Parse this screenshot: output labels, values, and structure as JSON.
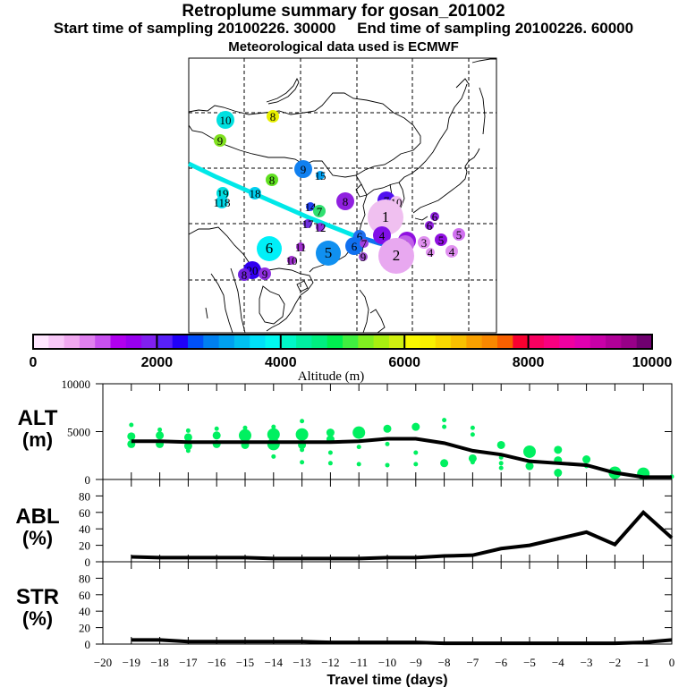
{
  "header": {
    "title": "Retroplume summary for gosan_201002",
    "sampling_line": "Start time of sampling 20100226. 30000     End time of sampling 20100226. 60000",
    "met_line": "Meteorological data used is ECMWF"
  },
  "colorbar": {
    "label": "Altitude (m)",
    "range": [
      0,
      10000
    ],
    "step": 250,
    "tick_labels": [
      "0",
      "2000",
      "4000",
      "6000",
      "8000",
      "10000"
    ],
    "colors": [
      "#ffe6ff",
      "#f8c8f8",
      "#f0a8f0",
      "#e080f0",
      "#c850f0",
      "#b000f0",
      "#9800f0",
      "#8020f0",
      "#5820f8",
      "#2000f8",
      "#0050f8",
      "#0080f0",
      "#00a0f0",
      "#00c0f0",
      "#00e0f8",
      "#00f8f0",
      "#00f8c8",
      "#00f0a0",
      "#00f080",
      "#00f050",
      "#40f040",
      "#80f020",
      "#a8f010",
      "#d0f010",
      "#f8f800",
      "#f8f000",
      "#f8d800",
      "#f8c000",
      "#f8a000",
      "#f88800",
      "#f86000",
      "#f80030",
      "#f80060",
      "#f80080",
      "#f000a0",
      "#e000b0",
      "#c800a8",
      "#b00098",
      "#980088",
      "#700070"
    ]
  },
  "map": {
    "markers": [
      {
        "label": "10",
        "color": "#00e0e0",
        "size": "m"
      },
      {
        "label": "8",
        "color": "#e8f000",
        "size": "s"
      },
      {
        "label": "9",
        "color": "#80e020",
        "size": "s"
      },
      {
        "label": "9",
        "color": "#1080f0",
        "size": "m"
      },
      {
        "label": "15",
        "color": "#00a0f0",
        "size": "xs"
      },
      {
        "label": "8",
        "color": "#60e020",
        "size": "s"
      },
      {
        "label": "19",
        "color": "#00e0e0",
        "size": "s"
      },
      {
        "label": "118",
        "color": "#00d8e8",
        "size": "s"
      },
      {
        "label": "18",
        "color": "#00d0f0",
        "size": "s"
      },
      {
        "label": "14",
        "color": "#2040f0",
        "size": "xs"
      },
      {
        "label": "7",
        "color": "#30e070",
        "size": "s"
      },
      {
        "label": "8",
        "color": "#9020e0",
        "size": "m"
      },
      {
        "label": "17",
        "color": "#7030e0",
        "size": "xs"
      },
      {
        "label": "12",
        "color": "#9030e0",
        "size": "xs"
      },
      {
        "label": "6",
        "color": "#00f0f8",
        "size": "l"
      },
      {
        "label": "11",
        "color": "#a030d0",
        "size": "xs"
      },
      {
        "label": "10",
        "color": "#a030d0",
        "size": "xs"
      },
      {
        "label": "5",
        "color": "#1090f0",
        "size": "l"
      },
      {
        "label": "20",
        "color": "#3000f0",
        "size": "m"
      },
      {
        "label": "8",
        "color": "#7020e0",
        "size": "s"
      },
      {
        "label": "9",
        "color": "#9030e0",
        "size": "s"
      },
      {
        "label": "7",
        "color": "#5010f0",
        "size": "m"
      },
      {
        "label": "10",
        "color": "#f0c0f0",
        "size": "s"
      },
      {
        "label": "1",
        "color": "#f0c0f0",
        "size": "xl"
      },
      {
        "label": "6",
        "color": "#2070f0",
        "size": "s"
      },
      {
        "label": "6",
        "color": "#1070f0",
        "size": "m"
      },
      {
        "label": "7",
        "color": "#a040e0",
        "size": "xs"
      },
      {
        "label": "9",
        "color": "#a050d0",
        "size": "xs"
      },
      {
        "label": "4",
        "color": "#8010e8",
        "size": "m"
      },
      {
        "label": "8",
        "color": "#3020f0",
        "size": "s"
      },
      {
        "label": "3",
        "color": "#9010e0",
        "size": "m"
      },
      {
        "label": "5",
        "color": "#c060e8",
        "size": "m"
      },
      {
        "label": "2",
        "color": "#e8a8f0",
        "size": "xl"
      },
      {
        "label": "3",
        "color": "#e090f0",
        "size": "s"
      },
      {
        "label": "6",
        "color": "#9020e0",
        "size": "xs"
      },
      {
        "label": "6",
        "color": "#9020e0",
        "size": "xs"
      },
      {
        "label": "5",
        "color": "#9010e0",
        "size": "s"
      },
      {
        "label": "5",
        "color": "#d070f0",
        "size": "s"
      },
      {
        "label": "4",
        "color": "#e090f0",
        "size": "xs"
      },
      {
        "label": "4",
        "color": "#e090f0",
        "size": "s"
      }
    ]
  },
  "chart_data": [
    {
      "type": "scatter",
      "name": "ALT",
      "ylabel": "ALT\n(m)",
      "ylabel_line1": "ALT",
      "ylabel_line2": "(m)",
      "ylim": [
        0,
        10000
      ],
      "yticks": [
        0,
        5000,
        10000
      ],
      "ytick_labels": [
        "0",
        "5000",
        "10000"
      ],
      "xlim": [
        -20,
        0
      ],
      "mean_line": {
        "x": [
          -19,
          -18,
          -17,
          -16,
          -15,
          -14,
          -13,
          -12,
          -11,
          -10,
          -9,
          -8,
          -7,
          -6,
          -5,
          -4,
          -3,
          -2,
          -1,
          0
        ],
        "y": [
          4000,
          4000,
          3900,
          3900,
          3900,
          3900,
          3900,
          3900,
          4000,
          4250,
          4250,
          3800,
          3000,
          2600,
          1900,
          1700,
          1500,
          700,
          250,
          250
        ]
      },
      "clusters": [
        {
          "x": -19,
          "points": [
            [
              5700,
              1
            ],
            [
              4500,
              2
            ],
            [
              3700,
              2
            ]
          ]
        },
        {
          "x": -18,
          "points": [
            [
              5200,
              1
            ],
            [
              4600,
              2
            ],
            [
              3700,
              2
            ]
          ]
        },
        {
          "x": -17,
          "points": [
            [
              5100,
              1
            ],
            [
              4400,
              2
            ],
            [
              3500,
              2
            ],
            [
              3000,
              1
            ]
          ]
        },
        {
          "x": -16,
          "points": [
            [
              5300,
              1
            ],
            [
              4600,
              2
            ],
            [
              3700,
              2
            ]
          ]
        },
        {
          "x": -15,
          "points": [
            [
              5400,
              1
            ],
            [
              4600,
              3
            ],
            [
              3600,
              2
            ]
          ]
        },
        {
          "x": -14,
          "points": [
            [
              5500,
              1
            ],
            [
              4700,
              3
            ],
            [
              3700,
              3
            ],
            [
              2400,
              1
            ]
          ]
        },
        {
          "x": -13,
          "points": [
            [
              6100,
              1
            ],
            [
              4700,
              3
            ],
            [
              3600,
              2
            ],
            [
              3100,
              1
            ],
            [
              1800,
              1
            ]
          ]
        },
        {
          "x": -12,
          "points": [
            [
              4900,
              2
            ],
            [
              4200,
              2
            ],
            [
              2800,
              1
            ],
            [
              1700,
              1
            ]
          ]
        },
        {
          "x": -11,
          "points": [
            [
              4900,
              3
            ],
            [
              3400,
              1
            ],
            [
              1600,
              1
            ]
          ]
        },
        {
          "x": -10,
          "points": [
            [
              5300,
              2
            ],
            [
              3700,
              1
            ],
            [
              1500,
              1
            ]
          ]
        },
        {
          "x": -9,
          "points": [
            [
              5500,
              2
            ],
            [
              2800,
              1
            ],
            [
              1600,
              1
            ]
          ]
        },
        {
          "x": -8,
          "points": [
            [
              6200,
              1
            ],
            [
              5500,
              1
            ],
            [
              1700,
              2
            ]
          ]
        },
        {
          "x": -7,
          "points": [
            [
              5400,
              1
            ],
            [
              4700,
              1
            ],
            [
              2200,
              2
            ],
            [
              1800,
              1
            ]
          ]
        },
        {
          "x": -6,
          "points": [
            [
              3600,
              2
            ],
            [
              2300,
              1
            ],
            [
              1700,
              1
            ],
            [
              1200,
              1
            ]
          ]
        },
        {
          "x": -5,
          "points": [
            [
              2900,
              3
            ],
            [
              1400,
              2
            ]
          ]
        },
        {
          "x": -4,
          "points": [
            [
              3100,
              2
            ],
            [
              2000,
              2
            ],
            [
              700,
              2
            ]
          ]
        },
        {
          "x": -3,
          "points": [
            [
              2100,
              2
            ],
            [
              1400,
              1
            ]
          ]
        },
        {
          "x": -2,
          "points": [
            [
              700,
              3
            ]
          ]
        },
        {
          "x": -1,
          "points": [
            [
              600,
              3
            ]
          ]
        },
        {
          "x": 0,
          "points": [
            [
              300,
              1
            ]
          ]
        }
      ],
      "point_color": "#00f060"
    },
    {
      "type": "line",
      "name": "ABL",
      "ylabel_line1": "ABL",
      "ylabel_line2": "(%)",
      "ylim": [
        0,
        100
      ],
      "yticks": [
        0,
        20,
        40,
        60,
        80
      ],
      "ytick_labels": [
        "0",
        "20",
        "40",
        "60",
        "80"
      ],
      "xlim": [
        -20,
        0
      ],
      "x": [
        -19,
        -18,
        -17,
        -16,
        -15,
        -14,
        -13,
        -12,
        -11,
        -10,
        -9,
        -8,
        -7,
        -6,
        -5,
        -4,
        -3,
        -2,
        -1,
        0
      ],
      "y": [
        6,
        5,
        5,
        5,
        5,
        4,
        4,
        4,
        4,
        5,
        5,
        7,
        8,
        16,
        20,
        28,
        36,
        21,
        60,
        29
      ]
    },
    {
      "type": "line",
      "name": "STR",
      "ylabel_line1": "STR",
      "ylabel_line2": "(%)",
      "ylim": [
        0,
        100
      ],
      "yticks": [
        0,
        20,
        40,
        60,
        80
      ],
      "ytick_labels": [
        "0",
        "20",
        "40",
        "60",
        "80"
      ],
      "xlim": [
        -20,
        0
      ],
      "xlabel": "Travel time (days)",
      "xtick_labels": [
        "−20",
        "−19",
        "−18",
        "−17",
        "−16",
        "−15",
        "−14",
        "−13",
        "−12",
        "−11",
        "−10",
        "−9",
        "−8",
        "−7",
        "−6",
        "−5",
        "−4",
        "−3",
        "−2",
        "−1",
        "0"
      ],
      "x": [
        -19,
        -18,
        -17,
        -16,
        -15,
        -14,
        -13,
        -12,
        -11,
        -10,
        -9,
        -8,
        -7,
        -6,
        -5,
        -4,
        -3,
        -2,
        -1,
        0
      ],
      "y": [
        5,
        5,
        3,
        3,
        3,
        3,
        3,
        2,
        2,
        2,
        2,
        1,
        1,
        1,
        1,
        1,
        1,
        1,
        2,
        5
      ]
    }
  ]
}
